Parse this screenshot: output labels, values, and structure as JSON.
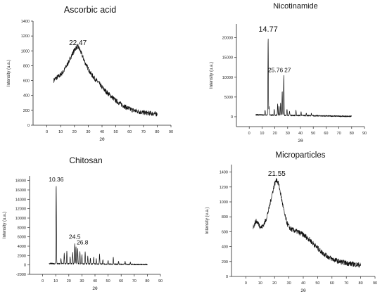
{
  "figure": {
    "panels": [
      {
        "title": "Ascorbic acid"
      },
      {
        "title": "Nicotinamide"
      },
      {
        "title": "Chitosan"
      },
      {
        "title": "Microparticles"
      }
    ]
  },
  "chart_data": [
    {
      "type": "line",
      "title": "Ascorbic acid",
      "xlabel": "2θ",
      "ylabel": "Intensity (u.a.)",
      "xlim": [
        -10,
        90
      ],
      "ylim": [
        0,
        1400
      ],
      "xticks": [
        0,
        10,
        20,
        30,
        40,
        50,
        60,
        70,
        80,
        90
      ],
      "yticks": [
        0,
        200,
        400,
        600,
        800,
        1000,
        1200,
        1400
      ],
      "grid": false,
      "annotations": [
        {
          "text": "22.47",
          "x": 22.47,
          "y": 1080
        }
      ],
      "series": [
        {
          "profile": "broad",
          "x": [
            5,
            6,
            8,
            10,
            12,
            14,
            16,
            18,
            20,
            21,
            22.5,
            24,
            26,
            28,
            30,
            32,
            35,
            38,
            40,
            43,
            46,
            50,
            54,
            58,
            62,
            66,
            70,
            75,
            80
          ],
          "y": [
            600,
            625,
            650,
            680,
            720,
            790,
            860,
            940,
            1010,
            1040,
            1060,
            1010,
            920,
            830,
            760,
            690,
            620,
            560,
            510,
            450,
            400,
            330,
            280,
            235,
            205,
            185,
            170,
            160,
            150
          ]
        }
      ]
    },
    {
      "type": "line",
      "title": "Nicotinamide",
      "xlabel": "2θ",
      "ylabel": "Intensity (u.a.)",
      "xlim": [
        -10,
        90
      ],
      "ylim": [
        -2500,
        23500
      ],
      "xticks": [
        0,
        10,
        20,
        30,
        40,
        50,
        60,
        70,
        80,
        90
      ],
      "yticks": [
        0,
        5000,
        10000,
        15000,
        20000
      ],
      "grid": false,
      "annotations": [
        {
          "text": "14.77",
          "x": 14.77,
          "y": 21500
        },
        {
          "text": "25.76",
          "x": 25.76,
          "y": 11300
        },
        {
          "text": "27",
          "x": 27,
          "y": 11300
        }
      ],
      "series": [
        {
          "profile": "peaks",
          "x": [
            5,
            20,
            40,
            60,
            80
          ],
          "y": [
            500,
            420,
            320,
            200,
            100
          ],
          "peaks": [
            {
              "x": 12.4,
              "y": 1200
            },
            {
              "x": 14.77,
              "y": 19500
            },
            {
              "x": 15.5,
              "y": 2000
            },
            {
              "x": 19.5,
              "y": 1600
            },
            {
              "x": 22.2,
              "y": 3000
            },
            {
              "x": 23.3,
              "y": 2200
            },
            {
              "x": 24.5,
              "y": 3200
            },
            {
              "x": 25.76,
              "y": 6200
            },
            {
              "x": 27,
              "y": 10000
            },
            {
              "x": 29.5,
              "y": 1500
            },
            {
              "x": 31.5,
              "y": 1000
            },
            {
              "x": 36.5,
              "y": 1200
            },
            {
              "x": 40.5,
              "y": 900
            },
            {
              "x": 44.5,
              "y": 700
            },
            {
              "x": 48.5,
              "y": 500
            }
          ]
        }
      ]
    },
    {
      "type": "line",
      "title": "Chitosan",
      "xlabel": "2θ",
      "ylabel": "Intensity (u.a.)",
      "xlim": [
        -10,
        90
      ],
      "ylim": [
        -2000,
        19000
      ],
      "xticks": [
        0,
        10,
        20,
        30,
        40,
        50,
        60,
        70,
        80,
        90
      ],
      "yticks": [
        -2000,
        0,
        2000,
        4000,
        6000,
        8000,
        10000,
        12000,
        14000,
        16000,
        18000
      ],
      "grid": false,
      "annotations": [
        {
          "text": "10.36",
          "x": 10.36,
          "y": 17800
        },
        {
          "text": "24.5",
          "x": 24.5,
          "y": 5600
        },
        {
          "text": "26.8",
          "x": 26.8,
          "y": 4400
        }
      ],
      "series": [
        {
          "profile": "peaks",
          "x": [
            5,
            20,
            40,
            60,
            80
          ],
          "y": [
            300,
            260,
            200,
            150,
            100
          ],
          "peaks": [
            {
              "x": 10.36,
              "y": 17000
            },
            {
              "x": 14,
              "y": 1200
            },
            {
              "x": 16.5,
              "y": 2200
            },
            {
              "x": 18.5,
              "y": 2600
            },
            {
              "x": 21,
              "y": 1400
            },
            {
              "x": 23,
              "y": 2400
            },
            {
              "x": 24.5,
              "y": 4400
            },
            {
              "x": 25.5,
              "y": 3600
            },
            {
              "x": 26.8,
              "y": 3200
            },
            {
              "x": 28.5,
              "y": 2600
            },
            {
              "x": 30,
              "y": 1900
            },
            {
              "x": 32.5,
              "y": 2500
            },
            {
              "x": 34.5,
              "y": 1600
            },
            {
              "x": 36.5,
              "y": 1300
            },
            {
              "x": 39,
              "y": 1500
            },
            {
              "x": 41,
              "y": 1100
            },
            {
              "x": 43.5,
              "y": 2100
            },
            {
              "x": 46,
              "y": 1000
            },
            {
              "x": 50,
              "y": 800
            },
            {
              "x": 54,
              "y": 1400
            },
            {
              "x": 58,
              "y": 700
            },
            {
              "x": 63,
              "y": 600
            },
            {
              "x": 67,
              "y": 500
            }
          ]
        }
      ]
    },
    {
      "type": "line",
      "title": "Microparticles",
      "xlabel": "2θ",
      "ylabel": "Intensity (u.a.)",
      "xlim": [
        -10,
        90
      ],
      "ylim": [
        0,
        1500
      ],
      "xticks": [
        0,
        10,
        20,
        30,
        40,
        50,
        60,
        70,
        80,
        90
      ],
      "yticks": [
        0,
        200,
        400,
        600,
        800,
        1000,
        1200,
        1400
      ],
      "grid": false,
      "annotations": [
        {
          "text": "21.55",
          "x": 21.55,
          "y": 1350
        }
      ],
      "series": [
        {
          "profile": "broad",
          "x": [
            5,
            6,
            7,
            8,
            9,
            10,
            11,
            12,
            14,
            16,
            18,
            20,
            21.5,
            23,
            25,
            27,
            29,
            31,
            33,
            36,
            40,
            44,
            48,
            52,
            56,
            60,
            65,
            70,
            75,
            80
          ],
          "y": [
            660,
            700,
            740,
            730,
            700,
            670,
            660,
            680,
            760,
            900,
            1080,
            1240,
            1300,
            1230,
            1030,
            830,
            700,
            640,
            620,
            600,
            560,
            500,
            420,
            340,
            280,
            235,
            200,
            180,
            165,
            150
          ]
        }
      ]
    }
  ]
}
